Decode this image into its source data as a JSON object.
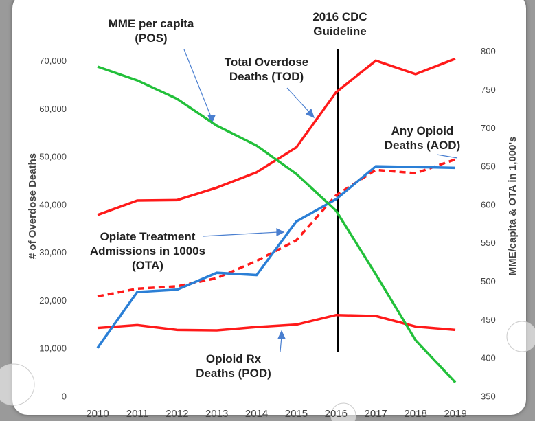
{
  "chart_data": {
    "type": "line",
    "y_label": "# of Overdose Deaths",
    "y2_label": "MME/capita & OTA in 1,000's",
    "annotations": [
      "2016 CDC Guideline"
    ],
    "categories": [
      "2010",
      "2011",
      "2012",
      "2013",
      "2014",
      "2015",
      "2016",
      "2017",
      "2018",
      "2019"
    ],
    "series": [
      {
        "name": "Total Overdose Deaths (TOD)",
        "color": "#ff1a1a",
        "style": "solid",
        "values": [
          38000,
          41000,
          41100,
          43700,
          46900,
          52100,
          63600,
          70200,
          67400,
          70600
        ]
      },
      {
        "name": "Any Opioid Deaths (AOD)",
        "color": "#ff1a1a",
        "style": "dashed",
        "values": [
          21000,
          22600,
          23100,
          24800,
          28400,
          32700,
          42100,
          47400,
          46700,
          49600
        ]
      },
      {
        "name": "Opioid Rx Deaths (POD)",
        "color": "#ff1a1a",
        "style": "solid",
        "values": [
          14400,
          15000,
          14000,
          13900,
          14600,
          15100,
          17100,
          16900,
          14700,
          14000
        ]
      },
      {
        "name": "Opiate Treatment Admissions in 1000s (OTA)",
        "color": "#2b7fd6",
        "style": "solid",
        "axis": "y2",
        "values": [
          414,
          487,
          490,
          512,
          509,
          579,
          608,
          651,
          650,
          649
        ]
      },
      {
        "name": "MME per capita (POS)",
        "color": "#22c03a",
        "style": "solid",
        "axis": "y2",
        "values": [
          781,
          763,
          739,
          704,
          678,
          641,
          593,
          510,
          424,
          369
        ]
      }
    ],
    "ylim": [
      0,
      80000
    ],
    "yticks": [
      {
        "value": 0,
        "label": "0"
      },
      {
        "value": 10000,
        "label": "10,000"
      },
      {
        "value": 20000,
        "label": "20,000"
      },
      {
        "value": 30000,
        "label": "30,000"
      },
      {
        "value": 40000,
        "label": "40,000"
      },
      {
        "value": 50000,
        "label": "50,000"
      },
      {
        "value": 60000,
        "label": "60,000"
      },
      {
        "value": 70000,
        "label": "70,000"
      }
    ],
    "y2lim": [
      350,
      850
    ],
    "y2ticks": [
      350,
      400,
      450,
      500,
      550,
      600,
      650,
      700,
      750,
      800
    ],
    "grid": false
  }
}
